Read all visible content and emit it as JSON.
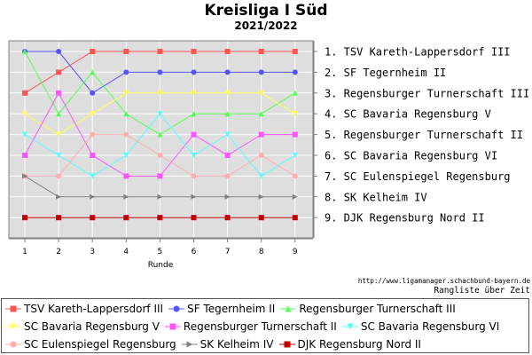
{
  "header": {
    "title": "Kreisliga I Süd",
    "subtitle": "2021/2022"
  },
  "chart_data": {
    "type": "line",
    "xlabel": "Runde",
    "ylabel": "",
    "x": [
      1,
      2,
      3,
      4,
      5,
      6,
      7,
      8,
      9
    ],
    "ylim": [
      1,
      9
    ],
    "y_inverted": true,
    "grid": true,
    "rank_labels": [
      "1. TSV Kareth-Lappersdorf III",
      "2. SF Tegernheim II",
      "3. Regensburger Turnerschaft III",
      "4. SC Bavaria Regensburg V",
      "5. Regensburger Turnerschaft II",
      "6. SC Bavaria Regensburg VI",
      "7. SC Eulenspiegel Regensburg",
      "8. SK Kelheim IV",
      "9. DJK Regensburg Nord II"
    ],
    "legend_position": "bottom",
    "series": [
      {
        "name": "TSV Kareth-Lappersdorf III",
        "color": "#ff5555",
        "marker": "square",
        "values": [
          3,
          2,
          1,
          1,
          1,
          1,
          1,
          1,
          1
        ]
      },
      {
        "name": "SF Tegernheim II",
        "color": "#5555ff",
        "marker": "circle",
        "values": [
          1,
          1,
          3,
          2,
          2,
          2,
          2,
          2,
          2
        ]
      },
      {
        "name": "Regensburger Turnerschaft III",
        "color": "#55ff55",
        "marker": "triangle-up",
        "values": [
          1,
          4,
          2,
          4,
          5,
          4,
          4,
          4,
          3
        ]
      },
      {
        "name": "SC Bavaria Regensburg V",
        "color": "#ffff55",
        "marker": "triangle-down",
        "values": [
          4,
          5,
          4,
          3,
          3,
          3,
          3,
          3,
          4
        ]
      },
      {
        "name": "Regensburger Turnerschaft II",
        "color": "#ff55ff",
        "marker": "square",
        "values": [
          6,
          3,
          6,
          7,
          7,
          5,
          6,
          5,
          5
        ]
      },
      {
        "name": "SC Bavaria Regensburg VI",
        "color": "#55ffff",
        "marker": "triangle-down",
        "values": [
          5,
          6,
          7,
          6,
          4,
          6,
          5,
          7,
          6
        ]
      },
      {
        "name": "SC Eulenspiegel Regensburg",
        "color": "#ffafaf",
        "marker": "circle",
        "values": [
          7,
          7,
          5,
          5,
          6,
          7,
          7,
          6,
          7
        ]
      },
      {
        "name": "SK Kelheim IV",
        "color": "#808080",
        "marker": "triangle-right",
        "values": [
          7,
          8,
          8,
          8,
          8,
          8,
          8,
          8,
          8
        ]
      },
      {
        "name": "DJK Regensburg Nord II",
        "color": "#c00000",
        "marker": "square",
        "values": [
          9,
          9,
          9,
          9,
          9,
          9,
          9,
          9,
          9
        ]
      }
    ]
  },
  "footer": {
    "source_url": "http://www.ligamanager.schachbund-bayern.de",
    "caption": "Rangliste über Zeit"
  }
}
